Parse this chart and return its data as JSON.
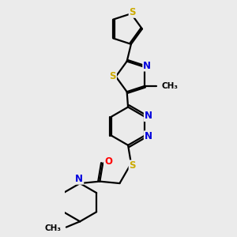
{
  "bg_color": "#ebebeb",
  "atom_colors": {
    "C": "#000000",
    "N": "#0000dd",
    "S": "#ccaa00",
    "O": "#ff0000"
  },
  "bond_color": "#000000",
  "bond_width": 1.6,
  "dbo": 0.055
}
